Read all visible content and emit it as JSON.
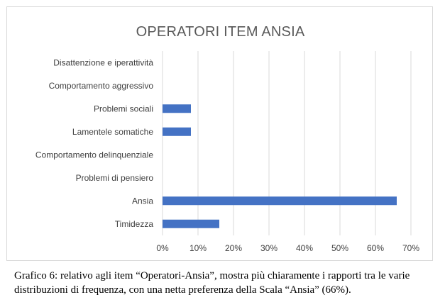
{
  "chart_data": {
    "type": "bar",
    "orientation": "horizontal",
    "title": "OPERATORI ITEM ANSIA",
    "categories": [
      "Disattenzione e iperattività",
      "Comportamento aggressivo",
      "Problemi sociali",
      "Lamentele somatiche",
      "Comportamento delinquenziale",
      "Problemi di pensiero",
      "Ansia",
      "Timidezza"
    ],
    "values": [
      0,
      0,
      8,
      8,
      0,
      0,
      66,
      16
    ],
    "xlim": [
      0,
      70
    ],
    "x_ticks": [
      "0%",
      "10%",
      "20%",
      "30%",
      "40%",
      "50%",
      "60%",
      "70%"
    ],
    "grid": "vertical",
    "bar_color": "#4472c4"
  },
  "caption": "Grafico 6: relativo agli item “Operatori-Ansia”, mostra più chiaramente i rapporti tra le varie distribuzioni di frequenza, con una netta preferenza della Scala “Ansia” (66%)."
}
